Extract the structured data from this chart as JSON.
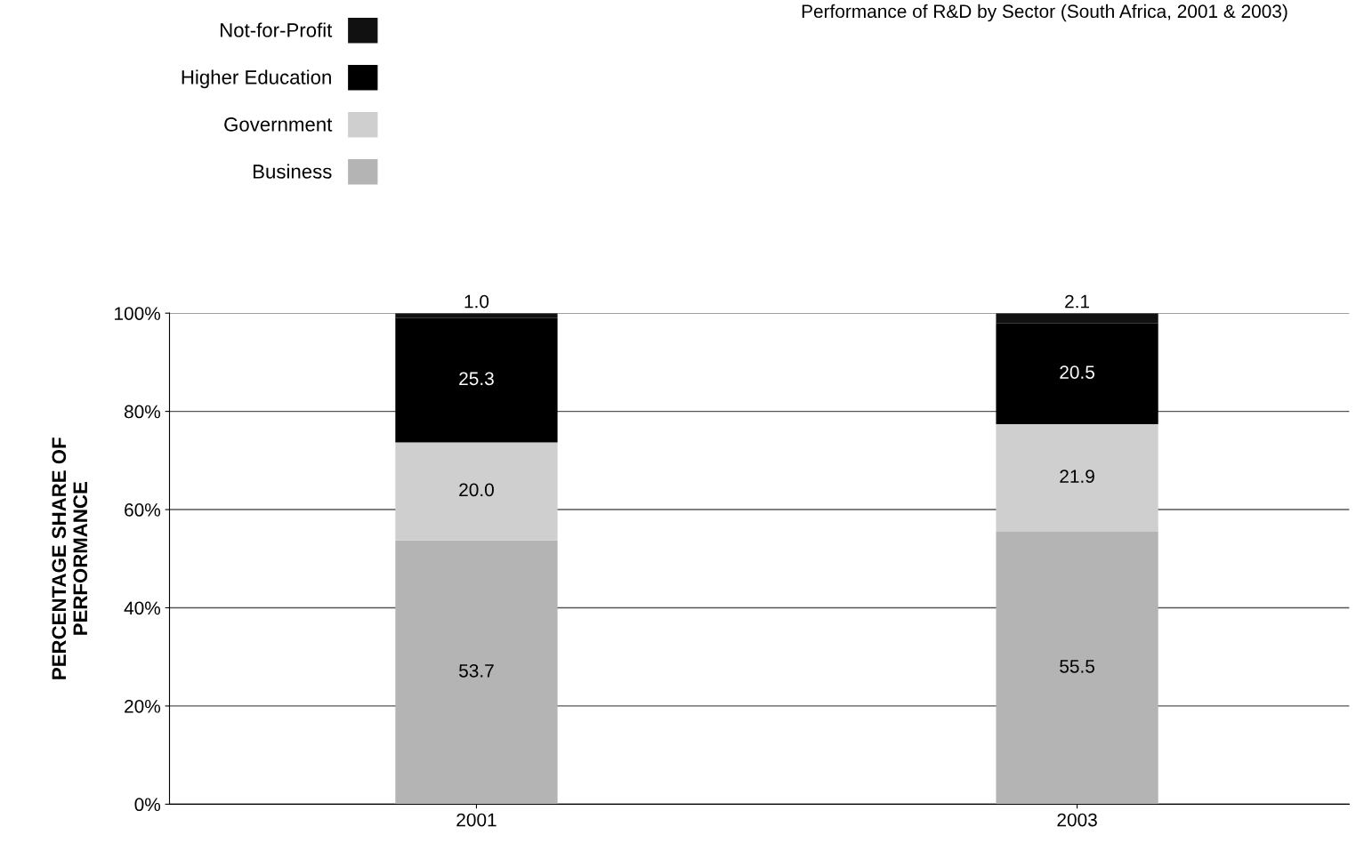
{
  "chart_data": {
    "type": "bar",
    "title": "Performance of R&D by Sector (South Africa, 2001 & 2003)",
    "ylabel": "PERCENTAGE SHARE OF\nPERFORMANCE",
    "categories": [
      "2001",
      "2003"
    ],
    "stacked": true,
    "series": [
      {
        "name": "Business",
        "color": "#b4b4b4",
        "values": [
          53.7,
          55.5
        ],
        "value_labels": [
          "53.7",
          "55.5"
        ]
      },
      {
        "name": "Government",
        "color": "#cfcfcf",
        "values": [
          20.0,
          21.9
        ],
        "value_labels": [
          "20.0",
          "21.9"
        ]
      },
      {
        "name": "Higher Education",
        "color": "#000000",
        "values": [
          25.3,
          20.5
        ],
        "value_labels": [
          "25.3",
          "20.5"
        ]
      },
      {
        "name": "Not-for-Profit",
        "color": "#111111",
        "values": [
          1.0,
          2.1
        ],
        "value_labels": [
          "1.0",
          "2.1"
        ]
      }
    ],
    "ylim": [
      0,
      100
    ],
    "yticks": [
      {
        "value": 0,
        "label": "0%"
      },
      {
        "value": 20,
        "label": "20%"
      },
      {
        "value": 40,
        "label": "40%"
      },
      {
        "value": 60,
        "label": "60%"
      },
      {
        "value": 80,
        "label": "80%"
      },
      {
        "value": 100,
        "label": "100%"
      }
    ],
    "grid": "y",
    "legend": "top left"
  }
}
